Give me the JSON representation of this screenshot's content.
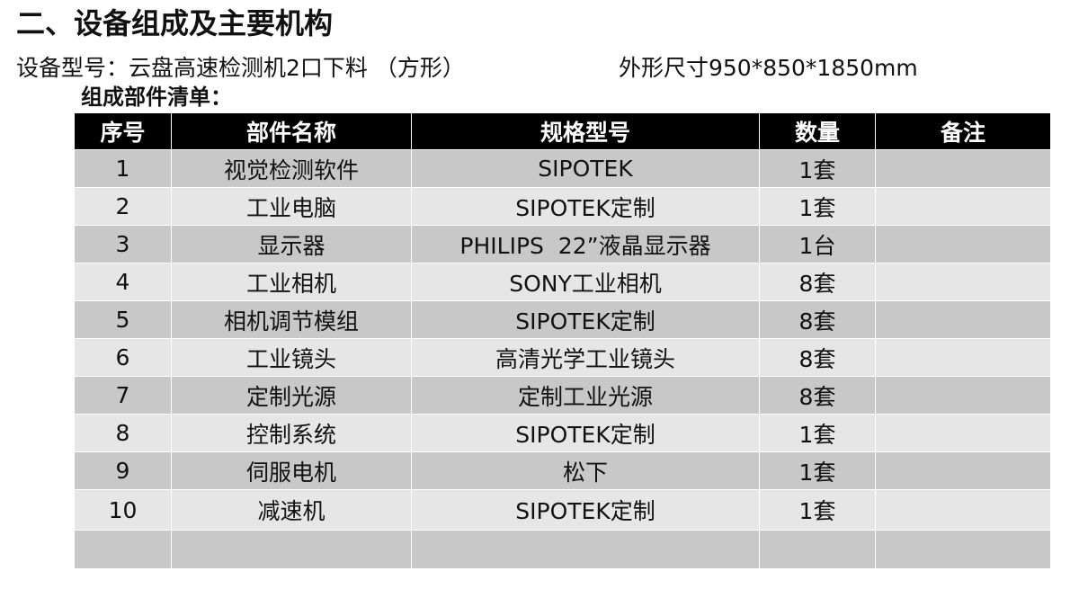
{
  "heading": "二、设备组成及主要机构",
  "model": {
    "label": "设备型号：",
    "value": "云盘高速检测机2口下料 （方形）"
  },
  "dimensions": "外形尺寸950*850*1850mm",
  "list_title": "组成部件清单：",
  "table": {
    "headers": [
      "序号",
      "部件名称",
      "规格型号",
      "数量",
      "备注"
    ],
    "rows": [
      [
        "1",
        "视觉检测软件",
        "SIPOTEK",
        "1套",
        ""
      ],
      [
        "2",
        "工业电脑",
        "SIPOTEK定制",
        "1套",
        ""
      ],
      [
        "3",
        "显示器",
        "PHILIPS  22”液晶显示器",
        "1台",
        ""
      ],
      [
        "4",
        "工业相机",
        "SONY工业相机",
        "8套",
        ""
      ],
      [
        "5",
        "相机调节模组",
        "SIPOTEK定制",
        "8套",
        ""
      ],
      [
        "6",
        "工业镜头",
        "高清光学工业镜头",
        "8套",
        ""
      ],
      [
        "7",
        "定制光源",
        "定制工业光源",
        "8套",
        ""
      ],
      [
        "8",
        "控制系统",
        "SIPOTEK定制",
        "1套",
        ""
      ],
      [
        "9",
        "伺服电机",
        "松下",
        "1套",
        ""
      ],
      [
        "10",
        "减速机",
        "SIPOTEK定制",
        "1套",
        ""
      ],
      [
        "",
        "",
        "",
        "",
        ""
      ]
    ]
  },
  "colors": {
    "header_bg": "#000000",
    "header_text": "#ffffff",
    "row_dark": "#c8c8c8",
    "row_light": "#e6e6e6"
  }
}
